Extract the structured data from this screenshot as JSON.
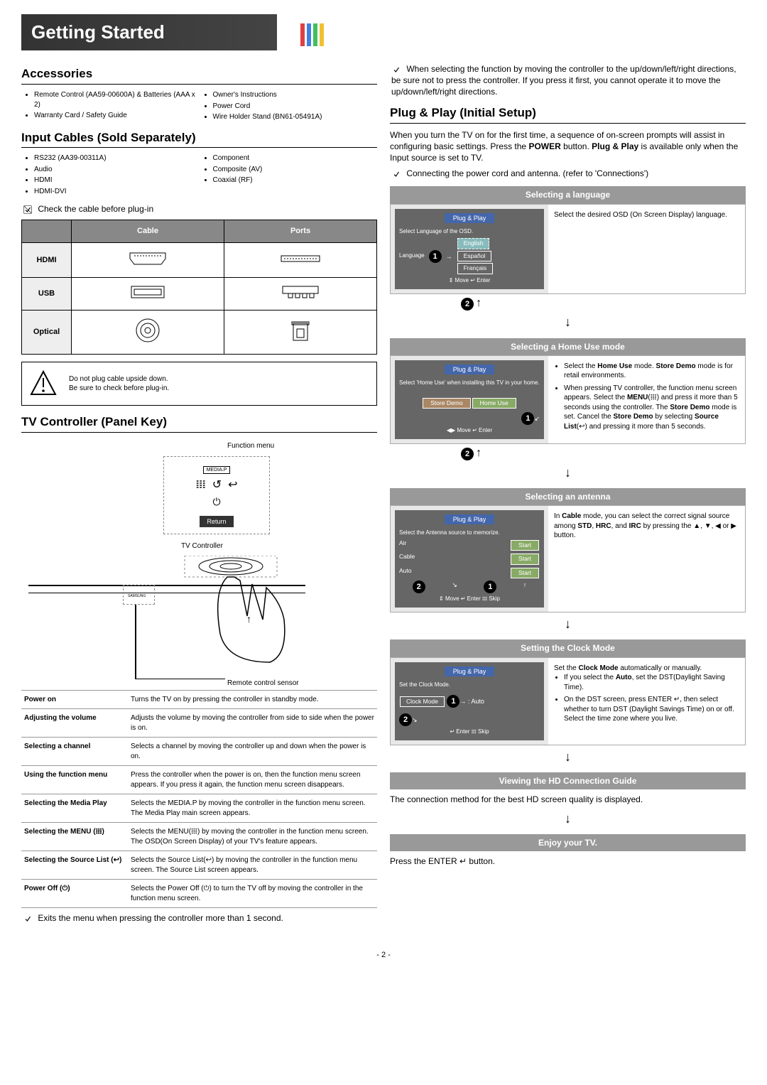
{
  "banner": {
    "title": "Getting Started",
    "stripe_colors": [
      "#e04040",
      "#4080e0",
      "#40c060",
      "#f0c030"
    ]
  },
  "accessories": {
    "heading": "Accessories",
    "items_l": [
      "Remote Control (AA59-00600A) & Batteries (AAA x 2)",
      "Warranty Card / Safety Guide"
    ],
    "items_r": [
      "Owner's Instructions",
      "Power Cord",
      "Wire Holder Stand (BN61-05491A)"
    ]
  },
  "cables": {
    "heading": "Input Cables (Sold Separately)",
    "items_l": [
      "RS232 (AA39-00311A)",
      "Audio",
      "HDMI",
      "HDMI-DVI"
    ],
    "items_r": [
      "Component",
      "Composite (AV)",
      "Coaxial (RF)"
    ],
    "check_note": "Check the cable before plug-in",
    "table": {
      "hdr_cable": "Cable",
      "hdr_ports": "Ports",
      "rows": [
        "HDMI",
        "USB",
        "Optical"
      ]
    }
  },
  "warn": {
    "l1": "Do not plug cable upside down.",
    "l2": "Be sure to check before plug-in."
  },
  "tvc": {
    "heading": "TV Controller (Panel Key)",
    "fn_label": "Function menu",
    "mediap": "MEDIA.P",
    "return": "Return",
    "tvc_label": "TV Controller",
    "sensor_label": "Remote control sensor",
    "samsung": "SAMSUNG",
    "rows": [
      {
        "k": "Power on",
        "v": "Turns the TV on by pressing the controller in standby mode."
      },
      {
        "k": "Adjusting the volume",
        "v": "Adjusts the volume by moving the controller from side to side when the power is on."
      },
      {
        "k": "Selecting a channel",
        "v": "Selects a channel by moving the controller up and down when the power is on."
      },
      {
        "k": "Using the function menu",
        "v": "Press the controller when the power is on, then the function menu screen appears. If you press it again, the function menu screen disappears."
      },
      {
        "k": "Selecting the Media Play",
        "v": "Selects the MEDIA.P by moving the controller in the function menu screen. The Media Play main screen appears."
      },
      {
        "k": "Selecting the MENU (𝍖)",
        "v": "Selects the MENU(𝍖) by moving the controller in the function menu screen. The OSD(On Screen Display) of your TV's feature appears."
      },
      {
        "k": "Selecting the Source List (↩)",
        "v": "Selects the Source List(↩) by moving the controller in the function menu screen. The Source List screen appears."
      },
      {
        "k": "Power Off (⏻)",
        "v": "Selects the Power Off (⏻) to turn the TV off by moving the controller in the function menu screen."
      }
    ],
    "exit_note": "Exits the menu when pressing the controller more than 1 second."
  },
  "rcol": {
    "top_note": "When selecting the function by moving the controller to the up/down/left/right directions, be sure not to press the controller. If you press it first, you cannot operate it to move the up/down/left/right directions.",
    "pp_heading": "Plug & Play (Initial Setup)",
    "pp_intro_a": "When you turn the TV on for the first time, a sequence of on-screen prompts will assist in configuring basic settings. Press the ",
    "pp_intro_power": "POWER",
    "pp_intro_b": " button. ",
    "pp_intro_bold": "Plug & Play",
    "pp_intro_c": " is available only when the Input source is set to TV.",
    "conn_note": "Connecting the power cord and antenna. (refer to 'Connections')",
    "steps": [
      {
        "hdr": "Selecting a language",
        "screen": {
          "title": "Plug & Play",
          "line": "Select Language of the OSD.",
          "lang_label": "Language",
          "opts": [
            "English",
            "Español",
            "Français"
          ],
          "hint": "⇕ Move   ↵ Enter"
        },
        "text_html": "Select the desired OSD (On Screen Display) language."
      },
      {
        "hdr": "Selecting a Home Use mode",
        "screen": {
          "title": "Plug & Play",
          "line": "Select 'Home Use' when installing this TV in your home.",
          "opts2": [
            "Store Demo",
            "Home Use"
          ],
          "hint": "◀▶ Move   ↵ Enter"
        },
        "text_list": [
          "Select the <b>Home Use</b> mode. <b>Store Demo</b> mode is for retail environments.",
          "When pressing TV controller, the function menu screen appears. Select the <b>MENU</b>(𝍖) and press it more than 5 seconds using the controller. The <b>Store Demo</b> mode is set. Cancel the <b>Store Demo</b> by selecting <b>Source List</b>(↩) and pressing it more than 5 seconds."
        ]
      },
      {
        "hdr": "Selecting an antenna",
        "screen": {
          "title": "Plug & Play",
          "line": "Select the Antenna source to memorize.",
          "ant_rows": [
            [
              "Air",
              "Start"
            ],
            [
              "Cable",
              "Start"
            ],
            [
              "Auto",
              "Start"
            ]
          ],
          "hint": "⇕ Move   ↵ Enter   𝍖 Skip"
        },
        "text_html": "In <b>Cable</b> mode, you can select the correct signal source among <b>STD</b>, <b>HRC</b>, and <b>IRC</b> by pressing the ▲, ▼, ◀ or ▶ button."
      },
      {
        "hdr": "Setting the Clock Mode",
        "screen": {
          "title": "Plug & Play",
          "line": "Set the Clock Mode.",
          "clock_label": "Clock Mode",
          "clock_val": ": Auto",
          "hint": "↵ Enter   𝍖 Skip"
        },
        "text_pre": "Set the <b>Clock Mode</b> automatically or manually.",
        "text_list": [
          "If you select the <b>Auto</b>, set the DST(Daylight Saving Time).",
          "On the DST screen, press ENTER ↵, then select whether to turn DST (Daylight Savings Time) on or off. Select the time zone where you live."
        ]
      },
      {
        "hdr": "Viewing the HD Connection Guide",
        "plain": "The connection method for the best HD screen quality is displayed."
      },
      {
        "hdr": "Enjoy your TV.",
        "plain_html": "Press the ENTER ↵ button."
      }
    ]
  },
  "page_num": "- 2 -"
}
